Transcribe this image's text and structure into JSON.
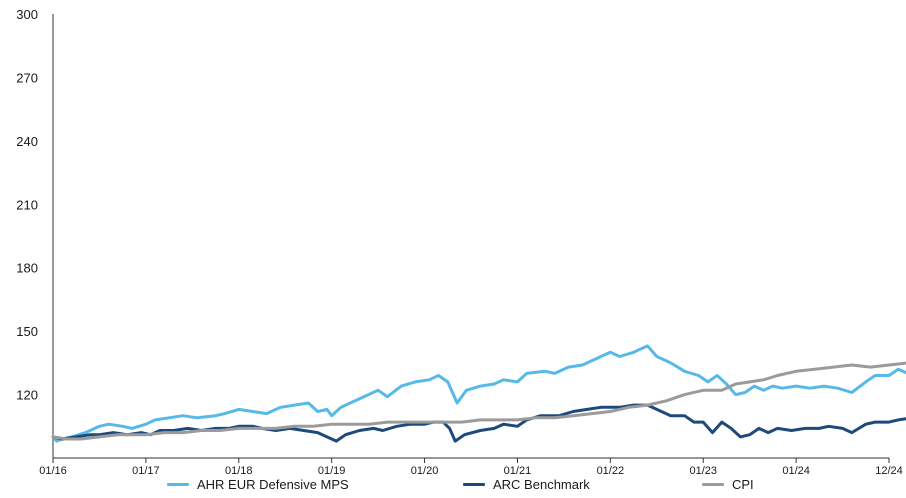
{
  "chart_data": {
    "type": "line",
    "ylim": [
      90,
      300
    ],
    "yticks": [
      120,
      150,
      180,
      210,
      240,
      270,
      300
    ],
    "xticks": [
      "01/16",
      "01/17",
      "01/18",
      "01/19",
      "01/20",
      "01/21",
      "01/22",
      "01/23",
      "01/24",
      "12/24"
    ],
    "grid": false,
    "legend_placement": "bottom",
    "series": [
      {
        "name": "AHR EUR Defensive MPS",
        "color": "#56b9e8",
        "points": [
          [
            0,
            100
          ],
          [
            0.04,
            98
          ],
          [
            0.1,
            99
          ],
          [
            0.2,
            100
          ],
          [
            0.35,
            102
          ],
          [
            0.5,
            105
          ],
          [
            0.6,
            106
          ],
          [
            0.75,
            105
          ],
          [
            0.85,
            104
          ],
          [
            1.0,
            106
          ],
          [
            1.1,
            108
          ],
          [
            1.25,
            109
          ],
          [
            1.4,
            110
          ],
          [
            1.55,
            109
          ],
          [
            1.75,
            110
          ],
          [
            1.85,
            111
          ],
          [
            2.0,
            113
          ],
          [
            2.15,
            112
          ],
          [
            2.3,
            111
          ],
          [
            2.45,
            114
          ],
          [
            2.6,
            115
          ],
          [
            2.75,
            116
          ],
          [
            2.85,
            112
          ],
          [
            2.95,
            113
          ],
          [
            3.0,
            110
          ],
          [
            3.1,
            114
          ],
          [
            3.3,
            118
          ],
          [
            3.5,
            122
          ],
          [
            3.6,
            119
          ],
          [
            3.75,
            124
          ],
          [
            3.9,
            126
          ],
          [
            4.05,
            127
          ],
          [
            4.15,
            129
          ],
          [
            4.25,
            126
          ],
          [
            4.35,
            116
          ],
          [
            4.45,
            122
          ],
          [
            4.6,
            124
          ],
          [
            4.75,
            125
          ],
          [
            4.85,
            127
          ],
          [
            5.0,
            126
          ],
          [
            5.1,
            130
          ],
          [
            5.3,
            131
          ],
          [
            5.4,
            130
          ],
          [
            5.55,
            133
          ],
          [
            5.7,
            134
          ],
          [
            5.85,
            137
          ],
          [
            6.0,
            140
          ],
          [
            6.1,
            138
          ],
          [
            6.25,
            140
          ],
          [
            6.4,
            143
          ],
          [
            6.5,
            138
          ],
          [
            6.65,
            135
          ],
          [
            6.8,
            131
          ],
          [
            6.95,
            129
          ],
          [
            7.05,
            126
          ],
          [
            7.15,
            129
          ],
          [
            7.25,
            125
          ],
          [
            7.35,
            120
          ],
          [
            7.45,
            121
          ],
          [
            7.55,
            124
          ],
          [
            7.65,
            122
          ],
          [
            7.75,
            124
          ],
          [
            7.85,
            123
          ],
          [
            8.0,
            124
          ],
          [
            8.15,
            123
          ],
          [
            8.3,
            124
          ],
          [
            8.45,
            123
          ],
          [
            8.6,
            121
          ],
          [
            8.75,
            126
          ],
          [
            8.85,
            129
          ],
          [
            9.0,
            129
          ],
          [
            9.1,
            132
          ],
          [
            9.2,
            130
          ],
          [
            9.35,
            132
          ],
          [
            9.5,
            134
          ],
          [
            9.65,
            136
          ],
          [
            9.75,
            134
          ],
          [
            9.85,
            138
          ],
          [
            9.95,
            137
          ]
        ]
      },
      {
        "name": "ARC Benchmark",
        "color": "#1d4a7a",
        "points": [
          [
            0,
            100
          ],
          [
            0.1,
            99
          ],
          [
            0.25,
            100
          ],
          [
            0.4,
            101
          ],
          [
            0.5,
            101
          ],
          [
            0.65,
            102
          ],
          [
            0.8,
            101
          ],
          [
            0.95,
            102
          ],
          [
            1.05,
            101
          ],
          [
            1.15,
            103
          ],
          [
            1.3,
            103
          ],
          [
            1.45,
            104
          ],
          [
            1.6,
            103
          ],
          [
            1.75,
            104
          ],
          [
            1.9,
            104
          ],
          [
            2.0,
            105
          ],
          [
            2.15,
            105
          ],
          [
            2.25,
            104
          ],
          [
            2.4,
            103
          ],
          [
            2.55,
            104
          ],
          [
            2.7,
            103
          ],
          [
            2.85,
            102
          ],
          [
            2.95,
            100
          ],
          [
            3.05,
            98
          ],
          [
            3.15,
            101
          ],
          [
            3.3,
            103
          ],
          [
            3.45,
            104
          ],
          [
            3.55,
            103
          ],
          [
            3.7,
            105
          ],
          [
            3.85,
            106
          ],
          [
            4.0,
            106
          ],
          [
            4.1,
            107
          ],
          [
            4.2,
            107
          ],
          [
            4.27,
            104
          ],
          [
            4.33,
            98
          ],
          [
            4.43,
            101
          ],
          [
            4.6,
            103
          ],
          [
            4.75,
            104
          ],
          [
            4.85,
            106
          ],
          [
            5.0,
            105
          ],
          [
            5.1,
            108
          ],
          [
            5.25,
            110
          ],
          [
            5.45,
            110
          ],
          [
            5.6,
            112
          ],
          [
            5.75,
            113
          ],
          [
            5.9,
            114
          ],
          [
            6.0,
            114
          ],
          [
            6.1,
            114
          ],
          [
            6.25,
            115
          ],
          [
            6.4,
            115
          ],
          [
            6.5,
            113
          ],
          [
            6.65,
            110
          ],
          [
            6.8,
            110
          ],
          [
            6.9,
            107
          ],
          [
            7.0,
            107
          ],
          [
            7.1,
            102
          ],
          [
            7.2,
            107
          ],
          [
            7.3,
            104
          ],
          [
            7.4,
            100
          ],
          [
            7.5,
            101
          ],
          [
            7.6,
            104
          ],
          [
            7.7,
            102
          ],
          [
            7.8,
            104
          ],
          [
            7.95,
            103
          ],
          [
            8.1,
            104
          ],
          [
            8.25,
            104
          ],
          [
            8.35,
            105
          ],
          [
            8.5,
            104
          ],
          [
            8.6,
            102
          ],
          [
            8.75,
            106
          ],
          [
            8.85,
            107
          ],
          [
            9.0,
            107
          ],
          [
            9.1,
            108
          ],
          [
            9.25,
            109
          ],
          [
            9.4,
            110
          ],
          [
            9.55,
            111
          ],
          [
            9.7,
            112
          ],
          [
            9.8,
            111
          ],
          [
            9.9,
            112
          ],
          [
            9.95,
            112
          ]
        ]
      },
      {
        "name": "CPI",
        "color": "#9b9b9b",
        "points": [
          [
            0,
            100
          ],
          [
            0.15,
            99
          ],
          [
            0.3,
            99
          ],
          [
            0.5,
            100
          ],
          [
            0.7,
            101
          ],
          [
            0.9,
            101
          ],
          [
            1.0,
            101
          ],
          [
            1.2,
            102
          ],
          [
            1.4,
            102
          ],
          [
            1.6,
            103
          ],
          [
            1.8,
            103
          ],
          [
            2.0,
            104
          ],
          [
            2.2,
            104
          ],
          [
            2.4,
            104
          ],
          [
            2.6,
            105
          ],
          [
            2.8,
            105
          ],
          [
            3.0,
            106
          ],
          [
            3.2,
            106
          ],
          [
            3.4,
            106
          ],
          [
            3.6,
            107
          ],
          [
            3.8,
            107
          ],
          [
            4.0,
            107
          ],
          [
            4.2,
            107
          ],
          [
            4.4,
            107
          ],
          [
            4.6,
            108
          ],
          [
            4.8,
            108
          ],
          [
            5.0,
            108
          ],
          [
            5.2,
            109
          ],
          [
            5.4,
            109
          ],
          [
            5.6,
            110
          ],
          [
            5.8,
            111
          ],
          [
            6.0,
            112
          ],
          [
            6.2,
            114
          ],
          [
            6.4,
            115
          ],
          [
            6.6,
            117
          ],
          [
            6.8,
            120
          ],
          [
            7.0,
            122
          ],
          [
            7.2,
            122
          ],
          [
            7.35,
            125
          ],
          [
            7.5,
            126
          ],
          [
            7.65,
            127
          ],
          [
            7.8,
            129
          ],
          [
            8.0,
            131
          ],
          [
            8.2,
            132
          ],
          [
            8.4,
            133
          ],
          [
            8.6,
            134
          ],
          [
            8.8,
            133
          ],
          [
            9.0,
            134
          ],
          [
            9.2,
            135
          ],
          [
            9.4,
            136
          ],
          [
            9.6,
            136
          ],
          [
            9.8,
            137
          ],
          [
            9.95,
            138
          ]
        ]
      }
    ]
  }
}
